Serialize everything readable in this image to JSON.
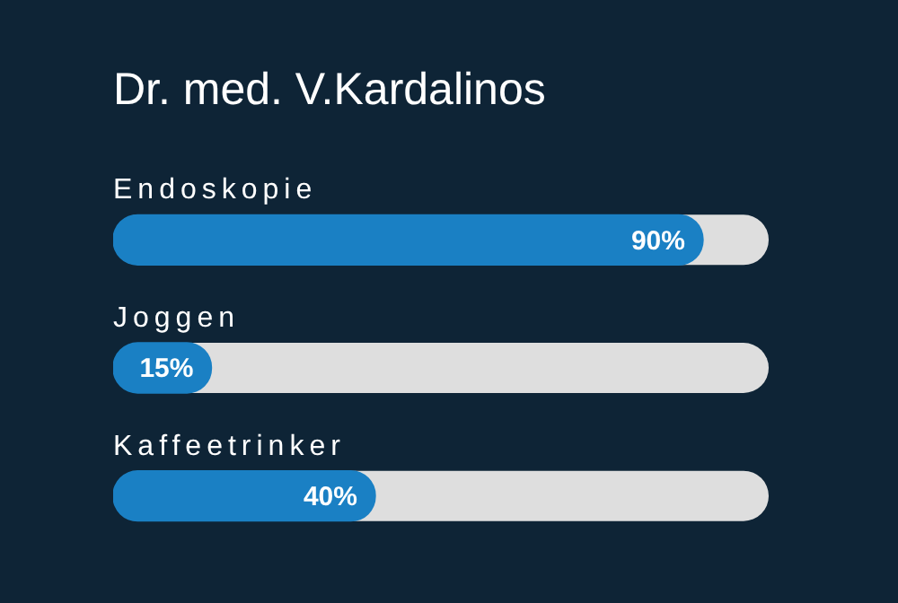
{
  "chart_data": {
    "type": "bar",
    "orientation": "horizontal",
    "title": "Dr. med. V.Kardalinos",
    "categories": [
      "Endoskopie",
      "Joggen",
      "Kaffeetrinker"
    ],
    "values": [
      90,
      15,
      40
    ],
    "value_labels": [
      "90%",
      "15%",
      "40%"
    ],
    "color": "#1a80c4",
    "xlim": [
      0,
      100
    ],
    "tick_labels": false
  }
}
